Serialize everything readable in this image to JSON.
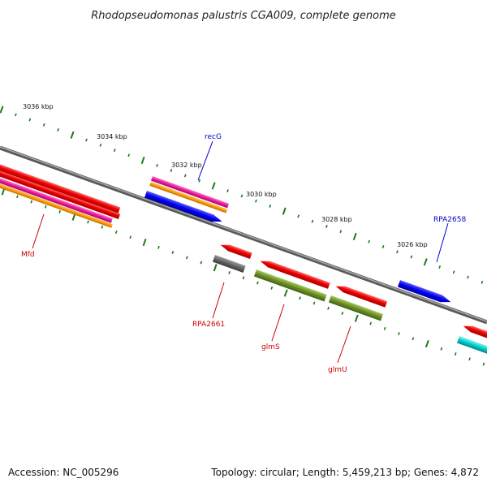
{
  "title": "Rhodopseudomonas palustris CGA009, complete genome",
  "footer": {
    "accession": "Accession: NC_005296",
    "summary": "Topology: circular; Length: 5,459,213 bp; Genes: 4,872"
  },
  "ruler": {
    "ticks": [
      {
        "label": "3036 kbp"
      },
      {
        "label": "3034 kbp"
      },
      {
        "label": "3032 kbp"
      },
      {
        "label": "3030 kbp"
      },
      {
        "label": "3028 kbp"
      },
      {
        "label": "3026 kbp"
      }
    ],
    "tick_color": "#1a7a1a"
  },
  "backbone_color": "#7a7a7a",
  "genes": [
    {
      "name": "Mfd",
      "label_color": "#cc0000",
      "strand": "reverse"
    },
    {
      "name": "recG",
      "label_color": "#0000cc",
      "strand": "forward"
    },
    {
      "name": "RPA2661",
      "label_color": "#cc0000",
      "strand": "reverse"
    },
    {
      "name": "glmS",
      "label_color": "#cc0000",
      "strand": "reverse"
    },
    {
      "name": "glmU",
      "label_color": "#cc0000",
      "strand": "reverse"
    },
    {
      "name": "RPA2658",
      "label_color": "#0000cc",
      "strand": "forward"
    }
  ],
  "colors": {
    "red": "#ee0000",
    "magenta": "#ee1a9a",
    "orange": "#ff9900",
    "blue": "#0000ee",
    "gray": "#666666",
    "olive": "#6b8e23",
    "cyan": "#00cccc"
  }
}
